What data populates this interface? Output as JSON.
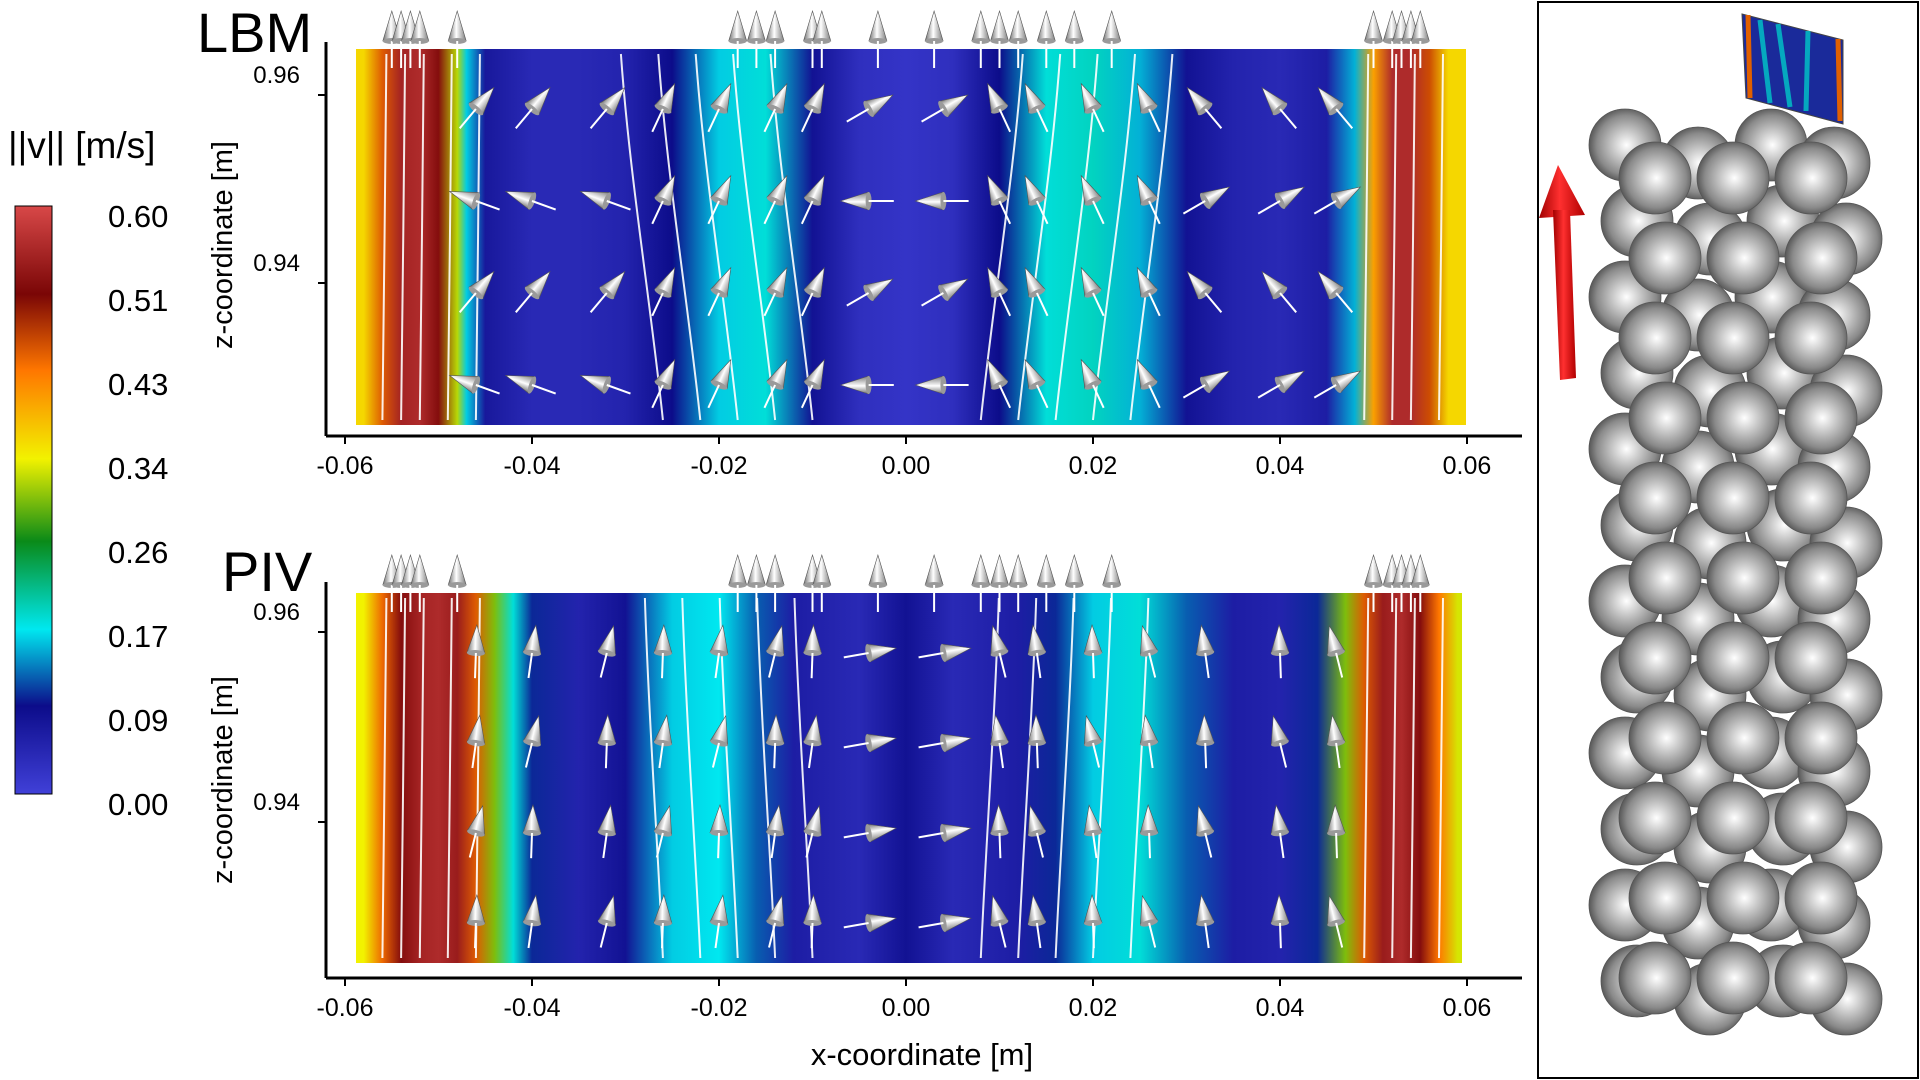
{
  "colorbar": {
    "title": "||v|| [m/s]",
    "ticks": [
      "0.60",
      "0.51",
      "0.43",
      "0.34",
      "0.26",
      "0.17",
      "0.09",
      "0.00"
    ],
    "range": [
      0.0,
      0.6
    ]
  },
  "chart_data": [
    {
      "type": "heatmap",
      "panel_label": "LBM",
      "xlabel": "",
      "ylabel": "z-coordinate [m]",
      "xlim": [
        -0.06,
        0.06
      ],
      "x_ticks": [
        "-0.06",
        "-0.04",
        "-0.02",
        "0.00",
        "0.02",
        "0.04",
        "0.06"
      ],
      "y_ticks": [
        "0.96",
        "0.94"
      ],
      "y_tick_values": [
        0.96,
        0.94
      ],
      "zlim": [
        0.928,
        0.968
      ],
      "field_profile": [
        [
          -0.058,
          0.36
        ],
        [
          -0.056,
          0.45
        ],
        [
          -0.054,
          0.55
        ],
        [
          -0.052,
          0.56
        ],
        [
          -0.05,
          0.52
        ],
        [
          -0.048,
          0.32
        ],
        [
          -0.047,
          0.16
        ],
        [
          -0.045,
          0.07
        ],
        [
          -0.04,
          0.04
        ],
        [
          -0.035,
          0.04
        ],
        [
          -0.03,
          0.05
        ],
        [
          -0.025,
          0.09
        ],
        [
          -0.02,
          0.16
        ],
        [
          -0.015,
          0.18
        ],
        [
          -0.01,
          0.08
        ],
        [
          -0.005,
          0.03
        ],
        [
          0.0,
          0.02
        ],
        [
          0.005,
          0.03
        ],
        [
          0.01,
          0.09
        ],
        [
          0.015,
          0.18
        ],
        [
          0.02,
          0.19
        ],
        [
          0.025,
          0.15
        ],
        [
          0.03,
          0.08
        ],
        [
          0.035,
          0.05
        ],
        [
          0.04,
          0.04
        ],
        [
          0.045,
          0.06
        ],
        [
          0.048,
          0.15
        ],
        [
          0.05,
          0.4
        ],
        [
          0.052,
          0.56
        ],
        [
          0.054,
          0.56
        ],
        [
          0.056,
          0.46
        ],
        [
          0.058,
          0.36
        ]
      ]
    },
    {
      "type": "heatmap",
      "panel_label": "PIV",
      "xlabel": "x-coordinate [m]",
      "ylabel": "z-coordinate [m]",
      "xlim": [
        -0.06,
        0.06
      ],
      "x_ticks": [
        "-0.06",
        "-0.04",
        "-0.02",
        "0.00",
        "0.02",
        "0.04",
        "0.06"
      ],
      "y_ticks": [
        "0.96",
        "0.94"
      ],
      "y_tick_values": [
        0.96,
        0.94
      ],
      "zlim": [
        0.928,
        0.968
      ],
      "field_profile": [
        [
          -0.058,
          0.34
        ],
        [
          -0.056,
          0.44
        ],
        [
          -0.054,
          0.52
        ],
        [
          -0.052,
          0.55
        ],
        [
          -0.05,
          0.56
        ],
        [
          -0.048,
          0.54
        ],
        [
          -0.046,
          0.45
        ],
        [
          -0.044,
          0.3
        ],
        [
          -0.042,
          0.18
        ],
        [
          -0.04,
          0.1
        ],
        [
          -0.035,
          0.05
        ],
        [
          -0.03,
          0.08
        ],
        [
          -0.025,
          0.16
        ],
        [
          -0.02,
          0.17
        ],
        [
          -0.016,
          0.12
        ],
        [
          -0.012,
          0.06
        ],
        [
          -0.005,
          0.04
        ],
        [
          0.0,
          0.08
        ],
        [
          0.005,
          0.04
        ],
        [
          0.012,
          0.06
        ],
        [
          0.016,
          0.1
        ],
        [
          0.02,
          0.16
        ],
        [
          0.025,
          0.18
        ],
        [
          0.03,
          0.12
        ],
        [
          0.035,
          0.06
        ],
        [
          0.04,
          0.05
        ],
        [
          0.044,
          0.1
        ],
        [
          0.047,
          0.3
        ],
        [
          0.049,
          0.45
        ],
        [
          0.051,
          0.54
        ],
        [
          0.053,
          0.56
        ],
        [
          0.055,
          0.52
        ],
        [
          0.057,
          0.43
        ],
        [
          0.059,
          0.33
        ]
      ]
    }
  ]
}
